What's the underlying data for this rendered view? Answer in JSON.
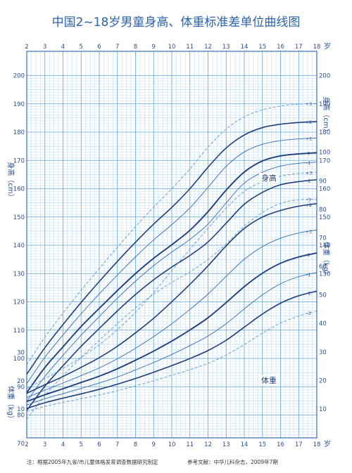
{
  "title": "中国2~18岁男童身高、体重标准差单位曲线图",
  "footer": {
    "note": "注：根据2005年九省/市儿童体格发育调查数据研究制定",
    "reference": "参考文献：中华儿科杂志，2009年7期"
  },
  "colors": {
    "grid_fine": "#9ec8e6",
    "grid_major": "#5ea4d6",
    "frame": "#3a6fb0",
    "curve_median": "#1e3f7a",
    "curve_sd": "#2f6db5",
    "curve_dashed": "#5a9ad6",
    "label_box": "#1e3f7a"
  },
  "chart_data": {
    "type": "line",
    "title": "中国2~18岁男童身高、体重标准差单位曲线图",
    "x_axis": {
      "unit_label": "岁",
      "ticks": [
        "2",
        "3",
        "4",
        "5",
        "6",
        "7",
        "8",
        "9",
        "10",
        "11",
        "12",
        "13",
        "14",
        "15",
        "16",
        "17",
        "18"
      ],
      "range": [
        2,
        18
      ]
    },
    "left_axis": {
      "height_label": "身高（cm）",
      "height_ticks": [
        70,
        80,
        90,
        100,
        110,
        120,
        130,
        140,
        150,
        160,
        170,
        180,
        190,
        200
      ],
      "weight_label": "体重（kg）",
      "weight_ticks": [
        10,
        20,
        30
      ]
    },
    "right_axis": {
      "height_label": "身高（cm）",
      "height_ticks": [
        130,
        140,
        150,
        160,
        170,
        180,
        190,
        200
      ],
      "weight_label": "体重（kg）",
      "weight_ticks": [
        10,
        20,
        30,
        40,
        50,
        60,
        70,
        80,
        90,
        100
      ]
    },
    "grid": true,
    "section_labels": {
      "height": "身高",
      "weight": "体重"
    },
    "height_series": [
      {
        "name": "-3",
        "x": [
          2,
          3,
          4,
          5,
          6,
          7,
          8,
          9,
          10,
          11,
          12,
          13,
          14,
          15,
          16,
          17,
          18
        ],
        "y": [
          78.5,
          86.8,
          93.9,
          100.4,
          106.4,
          112.3,
          117.9,
          122.7,
          126.9,
          130.6,
          135.0,
          140.5,
          146.8,
          151.6,
          154.8,
          156.1,
          156.3
        ]
      },
      {
        "name": "-2",
        "x": [
          2,
          3,
          4,
          5,
          6,
          7,
          8,
          9,
          10,
          11,
          12,
          13,
          14,
          15,
          16,
          17,
          18
        ],
        "y": [
          81.6,
          90.2,
          97.4,
          104.3,
          110.6,
          116.8,
          122.6,
          127.8,
          132.3,
          136.4,
          141.2,
          147.8,
          154.5,
          158.7,
          161.4,
          162.5,
          163.2
        ]
      },
      {
        "name": "-1",
        "x": [
          2,
          3,
          4,
          5,
          6,
          7,
          8,
          9,
          10,
          11,
          12,
          13,
          14,
          15,
          16,
          17,
          18
        ],
        "y": [
          84.8,
          93.6,
          101.1,
          108.2,
          114.8,
          121.3,
          127.3,
          132.8,
          137.6,
          142.1,
          147.5,
          155.0,
          162.0,
          165.8,
          168.0,
          169.0,
          169.4
        ]
      },
      {
        "name": "0",
        "x": [
          2,
          3,
          4,
          5,
          6,
          7,
          8,
          9,
          10,
          11,
          12,
          13,
          14,
          15,
          16,
          17,
          18
        ],
        "y": [
          87.9,
          96.8,
          104.1,
          111.3,
          117.7,
          124.0,
          130.0,
          135.4,
          140.2,
          145.3,
          151.9,
          159.5,
          165.9,
          169.8,
          171.6,
          172.3,
          172.7
        ]
      },
      {
        "name": "+1",
        "x": [
          2,
          3,
          4,
          5,
          6,
          7,
          8,
          9,
          10,
          11,
          12,
          13,
          14,
          15,
          16,
          17,
          18
        ],
        "y": [
          91.1,
          100.4,
          108.3,
          115.8,
          122.8,
          129.5,
          135.9,
          141.9,
          147.3,
          153.2,
          160.5,
          167.9,
          173.0,
          175.7,
          177.0,
          177.6,
          177.9
        ]
      },
      {
        "name": "+2",
        "x": [
          2,
          3,
          4,
          5,
          6,
          7,
          8,
          9,
          10,
          11,
          12,
          13,
          14,
          15,
          16,
          17,
          18
        ],
        "y": [
          94.4,
          103.8,
          112.0,
          119.8,
          127.2,
          134.3,
          141.1,
          147.5,
          153.4,
          160.0,
          167.6,
          174.4,
          179.0,
          181.6,
          182.8,
          183.4,
          183.7
        ]
      },
      {
        "name": "+3",
        "x": [
          2,
          3,
          4,
          5,
          6,
          7,
          8,
          9,
          10,
          11,
          12,
          13,
          14,
          15,
          16,
          17,
          18
        ],
        "y": [
          97.8,
          107.5,
          116.0,
          124.1,
          131.8,
          139.3,
          146.6,
          153.5,
          160.0,
          167.0,
          174.7,
          181.1,
          185.4,
          187.9,
          189.2,
          189.9,
          190.1
        ]
      }
    ],
    "weight_series": [
      {
        "name": "-3",
        "x": [
          2,
          3,
          4,
          5,
          6,
          7,
          8,
          9,
          10,
          11,
          12,
          13,
          14,
          15,
          16,
          17,
          18
        ],
        "y": [
          9.1,
          10.9,
          12.3,
          13.6,
          14.9,
          16.4,
          18.1,
          19.9,
          21.8,
          23.8,
          26.0,
          28.9,
          32.6,
          36.6,
          40.1,
          42.6,
          44.4
        ]
      },
      {
        "name": "-2",
        "x": [
          2,
          3,
          4,
          5,
          6,
          7,
          8,
          9,
          10,
          11,
          12,
          13,
          14,
          15,
          16,
          17,
          18
        ],
        "y": [
          10.2,
          12.2,
          13.8,
          15.3,
          16.9,
          18.7,
          20.7,
          22.9,
          25.2,
          27.7,
          30.5,
          34.1,
          38.7,
          43.3,
          47.1,
          49.7,
          51.3
        ]
      },
      {
        "name": "-1",
        "x": [
          2,
          3,
          4,
          5,
          6,
          7,
          8,
          9,
          10,
          11,
          12,
          13,
          14,
          15,
          16,
          17,
          18
        ],
        "y": [
          11.4,
          13.6,
          15.4,
          17.2,
          19.1,
          21.2,
          23.7,
          26.3,
          29.1,
          32.2,
          35.6,
          39.9,
          45.1,
          50.0,
          53.9,
          56.4,
          57.9
        ]
      },
      {
        "name": "0",
        "x": [
          2,
          3,
          4,
          5,
          6,
          7,
          8,
          9,
          10,
          11,
          12,
          13,
          14,
          15,
          16,
          17,
          18
        ],
        "y": [
          12.6,
          15.0,
          17.1,
          19.3,
          21.5,
          24.1,
          27.1,
          30.3,
          33.8,
          37.7,
          42.0,
          47.3,
          52.9,
          57.6,
          61.1,
          63.3,
          64.7
        ]
      },
      {
        "name": "+1",
        "x": [
          2,
          3,
          4,
          5,
          6,
          7,
          8,
          9,
          10,
          11,
          12,
          13,
          14,
          15,
          16,
          17,
          18
        ],
        "y": [
          14.0,
          16.6,
          19.1,
          21.7,
          24.4,
          27.6,
          31.3,
          35.4,
          39.9,
          44.9,
          50.3,
          56.5,
          62.5,
          66.9,
          69.9,
          71.7,
          72.8
        ]
      },
      {
        "name": "+2",
        "x": [
          2,
          3,
          4,
          5,
          6,
          7,
          8,
          9,
          10,
          11,
          12,
          13,
          14,
          15,
          16,
          17,
          18
        ],
        "y": [
          15.5,
          18.5,
          21.4,
          24.6,
          28.0,
          32.0,
          36.7,
          41.8,
          47.6,
          53.7,
          60.2,
          67.2,
          73.3,
          77.3,
          79.6,
          81.1,
          82.0
        ]
      },
      {
        "name": "+3",
        "x": [
          2,
          3,
          4,
          5,
          6,
          7,
          8,
          9,
          10,
          11,
          12,
          13,
          14,
          15,
          16,
          17,
          18
        ],
        "y": [
          17.2,
          20.6,
          24.2,
          28.1,
          32.5,
          37.8,
          43.9,
          50.8,
          58.5,
          66.0,
          73.3,
          80.4,
          86.3,
          89.7,
          91.6,
          92.6,
          93.0
        ]
      }
    ],
    "sd_labels": [
      "+3",
      "+2",
      "+1",
      "0",
      "-1",
      "-2",
      "-3"
    ]
  }
}
